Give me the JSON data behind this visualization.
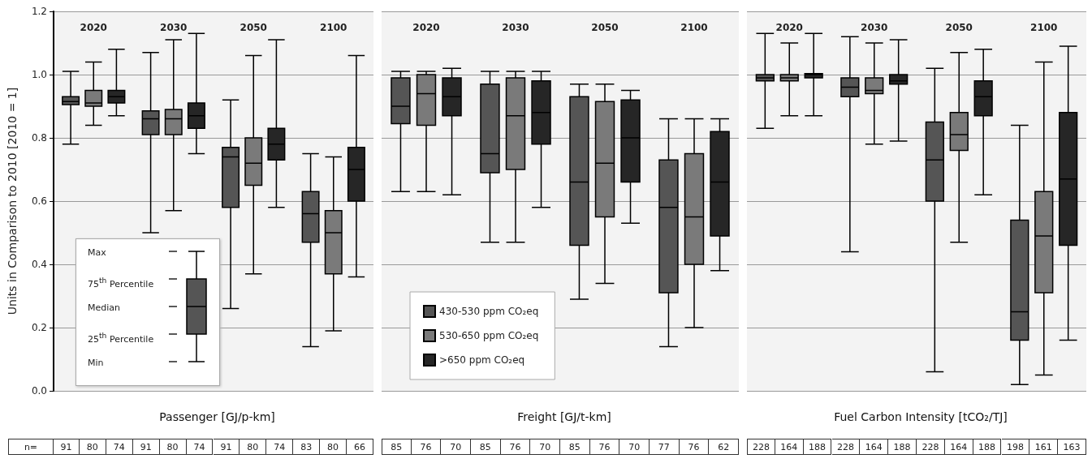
{
  "chart_data": [
    {
      "type": "box",
      "xlabel": "Passenger [GJ/p-km]",
      "ylabel": "Units in Comparison to 2010 [2010 = 1]",
      "categories": [
        "2020",
        "2030",
        "2050",
        "2100"
      ],
      "ylim": [
        0,
        1.2
      ],
      "yticks": [
        {
          "value": 0,
          "label": "0.0"
        },
        {
          "value": 0.2,
          "label": "0.2"
        },
        {
          "value": 0.4,
          "label": "0.4"
        },
        {
          "value": 0.6,
          "label": "0.6"
        },
        {
          "value": 0.8,
          "label": "0.8"
        },
        {
          "value": 1,
          "label": "1.0"
        },
        {
          "value": 1.2,
          "label": "1.2"
        }
      ],
      "grid": "y",
      "legend": false,
      "annotations": [
        "Max",
        "75$^{th}$ Percentile",
        "Median",
        "25$^{th}$ Percentile",
        "Min",
        "n="
      ],
      "series": [
        {
          "color": "#555555",
          "value_labels": [
            "91",
            "91",
            "91",
            "83"
          ],
          "boxes": [
            {
              "low": 0.78,
              "q1": 0.905,
              "median": 0.915,
              "q3": 0.93,
              "high": 1.01
            },
            {
              "low": 0.5,
              "q1": 0.81,
              "median": 0.86,
              "q3": 0.885,
              "high": 1.07
            },
            {
              "low": 0.26,
              "q1": 0.58,
              "median": 0.74,
              "q3": 0.77,
              "high": 0.92
            },
            {
              "low": 0.14,
              "q1": 0.47,
              "median": 0.56,
              "q3": 0.63,
              "high": 0.75
            }
          ]
        },
        {
          "color": "#7a7a7a",
          "value_labels": [
            "80",
            "80",
            "80",
            "80"
          ],
          "boxes": [
            {
              "low": 0.84,
              "q1": 0.9,
              "median": 0.91,
              "q3": 0.95,
              "high": 1.04
            },
            {
              "low": 0.57,
              "q1": 0.81,
              "median": 0.86,
              "q3": 0.89,
              "high": 1.11
            },
            {
              "low": 0.37,
              "q1": 0.65,
              "median": 0.72,
              "q3": 0.8,
              "high": 1.06
            },
            {
              "low": 0.19,
              "q1": 0.37,
              "median": 0.5,
              "q3": 0.57,
              "high": 0.74
            }
          ]
        },
        {
          "color": "#262626",
          "value_labels": [
            "74",
            "74",
            "74",
            "66"
          ],
          "boxes": [
            {
              "low": 0.87,
              "q1": 0.91,
              "median": 0.93,
              "q3": 0.95,
              "high": 1.08
            },
            {
              "low": 0.75,
              "q1": 0.83,
              "median": 0.87,
              "q3": 0.91,
              "high": 1.13
            },
            {
              "low": 0.58,
              "q1": 0.73,
              "median": 0.78,
              "q3": 0.83,
              "high": 1.11
            },
            {
              "low": 0.36,
              "q1": 0.6,
              "median": 0.7,
              "q3": 0.77,
              "high": 1.06
            }
          ]
        }
      ]
    },
    {
      "type": "box",
      "xlabel": "Freight [GJ/t-km]",
      "categories": [
        "2020",
        "2030",
        "2050",
        "2100"
      ],
      "ylim": [
        0,
        1.2
      ],
      "yticks": [
        0,
        0.2,
        0.4,
        0.6,
        0.8,
        1,
        1.2
      ],
      "grid": "y",
      "legend": "bottom left",
      "tick_labels": "x",
      "series": [
        {
          "name": "430-530 ppm CO₂eq",
          "color": "#555555",
          "value_labels": [
            "85",
            "85",
            "85",
            "77"
          ],
          "boxes": [
            {
              "low": 0.63,
              "q1": 0.845,
              "median": 0.9,
              "q3": 0.99,
              "high": 1.01
            },
            {
              "low": 0.47,
              "q1": 0.69,
              "median": 0.75,
              "q3": 0.97,
              "high": 1.01
            },
            {
              "low": 0.29,
              "q1": 0.46,
              "median": 0.66,
              "q3": 0.93,
              "high": 0.97
            },
            {
              "low": 0.14,
              "q1": 0.31,
              "median": 0.58,
              "q3": 0.73,
              "high": 0.86
            }
          ]
        },
        {
          "name": "530-650 ppm CO₂eq",
          "color": "#7a7a7a",
          "value_labels": [
            "76",
            "76",
            "76",
            "76"
          ],
          "boxes": [
            {
              "low": 0.63,
              "q1": 0.84,
              "median": 0.94,
              "q3": 1,
              "high": 1.01
            },
            {
              "low": 0.47,
              "q1": 0.7,
              "median": 0.87,
              "q3": 0.99,
              "high": 1.01
            },
            {
              "low": 0.34,
              "q1": 0.55,
              "median": 0.72,
              "q3": 0.915,
              "high": 0.97
            },
            {
              "low": 0.2,
              "q1": 0.4,
              "median": 0.55,
              "q3": 0.75,
              "high": 0.86
            }
          ]
        },
        {
          "name": ">650 ppm CO₂eq",
          "color": "#262626",
          "value_labels": [
            "70",
            "70",
            "70",
            "62"
          ],
          "boxes": [
            {
              "low": 0.62,
              "q1": 0.87,
              "median": 0.93,
              "q3": 0.99,
              "high": 1.02
            },
            {
              "low": 0.58,
              "q1": 0.78,
              "median": 0.88,
              "q3": 0.98,
              "high": 1.01
            },
            {
              "low": 0.53,
              "q1": 0.66,
              "median": 0.8,
              "q3": 0.92,
              "high": 0.95
            },
            {
              "low": 0.38,
              "q1": 0.49,
              "median": 0.66,
              "q3": 0.82,
              "high": 0.86
            }
          ]
        }
      ]
    },
    {
      "type": "box",
      "xlabel": "Fuel Carbon Intensity [tCO₂/TJ]",
      "categories": [
        "2020",
        "2030",
        "2050",
        "2100"
      ],
      "ylim": [
        0,
        1.2
      ],
      "yticks": [
        0,
        0.2,
        0.4,
        0.6,
        0.8,
        1,
        1.2
      ],
      "grid": "y",
      "legend": false,
      "tick_labels": "x",
      "series": [
        {
          "color": "#555555",
          "value_labels": [
            "228",
            "228",
            "228",
            "198"
          ],
          "boxes": [
            {
              "low": 0.83,
              "q1": 0.98,
              "median": 0.99,
              "q3": 1,
              "high": 1.13
            },
            {
              "low": 0.44,
              "q1": 0.93,
              "median": 0.96,
              "q3": 0.99,
              "high": 1.12
            },
            {
              "low": 0.06,
              "q1": 0.6,
              "median": 0.73,
              "q3": 0.85,
              "high": 1.02
            },
            {
              "low": 0.02,
              "q1": 0.16,
              "median": 0.25,
              "q3": 0.54,
              "high": 0.84
            }
          ]
        },
        {
          "color": "#7a7a7a",
          "value_labels": [
            "164",
            "164",
            "164",
            "161"
          ],
          "boxes": [
            {
              "low": 0.87,
              "q1": 0.98,
              "median": 0.99,
              "q3": 1,
              "high": 1.1
            },
            {
              "low": 0.78,
              "q1": 0.94,
              "median": 0.95,
              "q3": 0.99,
              "high": 1.1
            },
            {
              "low": 0.47,
              "q1": 0.76,
              "median": 0.81,
              "q3": 0.88,
              "high": 1.07
            },
            {
              "low": 0.05,
              "q1": 0.31,
              "median": 0.49,
              "q3": 0.63,
              "high": 1.04
            }
          ]
        },
        {
          "color": "#262626",
          "value_labels": [
            "188",
            "188",
            "188",
            "163"
          ],
          "boxes": [
            {
              "low": 0.87,
              "q1": 0.99,
              "median": 1,
              "q3": 1.003,
              "high": 1.13
            },
            {
              "low": 0.79,
              "q1": 0.97,
              "median": 0.98,
              "q3": 1,
              "high": 1.11
            },
            {
              "low": 0.62,
              "q1": 0.87,
              "median": 0.93,
              "q3": 0.98,
              "high": 1.08
            },
            {
              "low": 0.16,
              "q1": 0.46,
              "median": 0.67,
              "q3": 0.88,
              "high": 1.09
            }
          ]
        }
      ]
    }
  ]
}
